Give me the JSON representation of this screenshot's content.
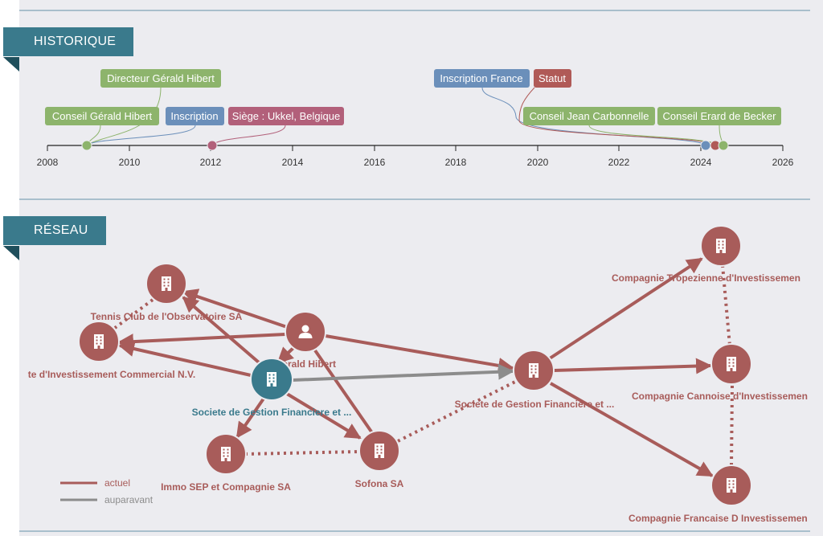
{
  "historique": {
    "title": "HISTORIQUE",
    "axis_years": [
      "2008",
      "2010",
      "2012",
      "2014",
      "2016",
      "2018",
      "2020",
      "2022",
      "2024",
      "2026"
    ],
    "events": [
      {
        "label": "Directeur Gérald Hibert",
        "year": 2009.0,
        "color": "#8db46c"
      },
      {
        "label": "Conseil Gérald Hibert",
        "year": 2009.0,
        "color": "#8db46c"
      },
      {
        "label": "Inscription",
        "year": 2009.0,
        "color": "#6b8fba"
      },
      {
        "label": "Siège : Ukkel, Belgique",
        "year": 2012.0,
        "color": "#b2607a"
      },
      {
        "label": "Inscription France",
        "year": 2024.2,
        "color": "#6b8fba"
      },
      {
        "label": "Statut",
        "year": 2024.4,
        "color": "#b05a57"
      },
      {
        "label": "Conseil Jean Carbonnelle",
        "year": 2024.5,
        "color": "#8db46c"
      },
      {
        "label": "Conseil Erard de Becker",
        "year": 2024.6,
        "color": "#8db46c"
      }
    ]
  },
  "reseau": {
    "title": "RÉSEAU",
    "colors": {
      "current": "#a85c5a",
      "previous": "#8c8c8c",
      "focus": "#3a7a8c"
    },
    "nodes": [
      {
        "label": "Tennis Club de l'Observatoire SA",
        "type": "company-icon",
        "focus": false
      },
      {
        "label": "te d'Investissement Commercial N.V.",
        "type": "company-icon",
        "focus": false
      },
      {
        "label": "Gérald Hibert",
        "type": "person-icon",
        "focus": false
      },
      {
        "label": "Societe de Gestion Financiere et ...",
        "type": "company-icon",
        "focus": true
      },
      {
        "label": "Immo SEP et Compagnie SA",
        "type": "company-icon",
        "focus": false
      },
      {
        "label": "Sofona SA",
        "type": "company-icon",
        "focus": false
      },
      {
        "label": "Societe de Gestion Financiere et ...",
        "type": "company-icon",
        "focus": false
      },
      {
        "label": "Compagnie Tropezienne d'Investissemen",
        "type": "company-icon",
        "focus": false
      },
      {
        "label": "Compagnie Cannoise d'Investissemen",
        "type": "company-icon",
        "focus": false
      },
      {
        "label": "Compagnie Francaise D Investissemen",
        "type": "company-icon",
        "focus": false
      }
    ],
    "legend": {
      "current": "actuel",
      "previous": "auparavant"
    }
  }
}
